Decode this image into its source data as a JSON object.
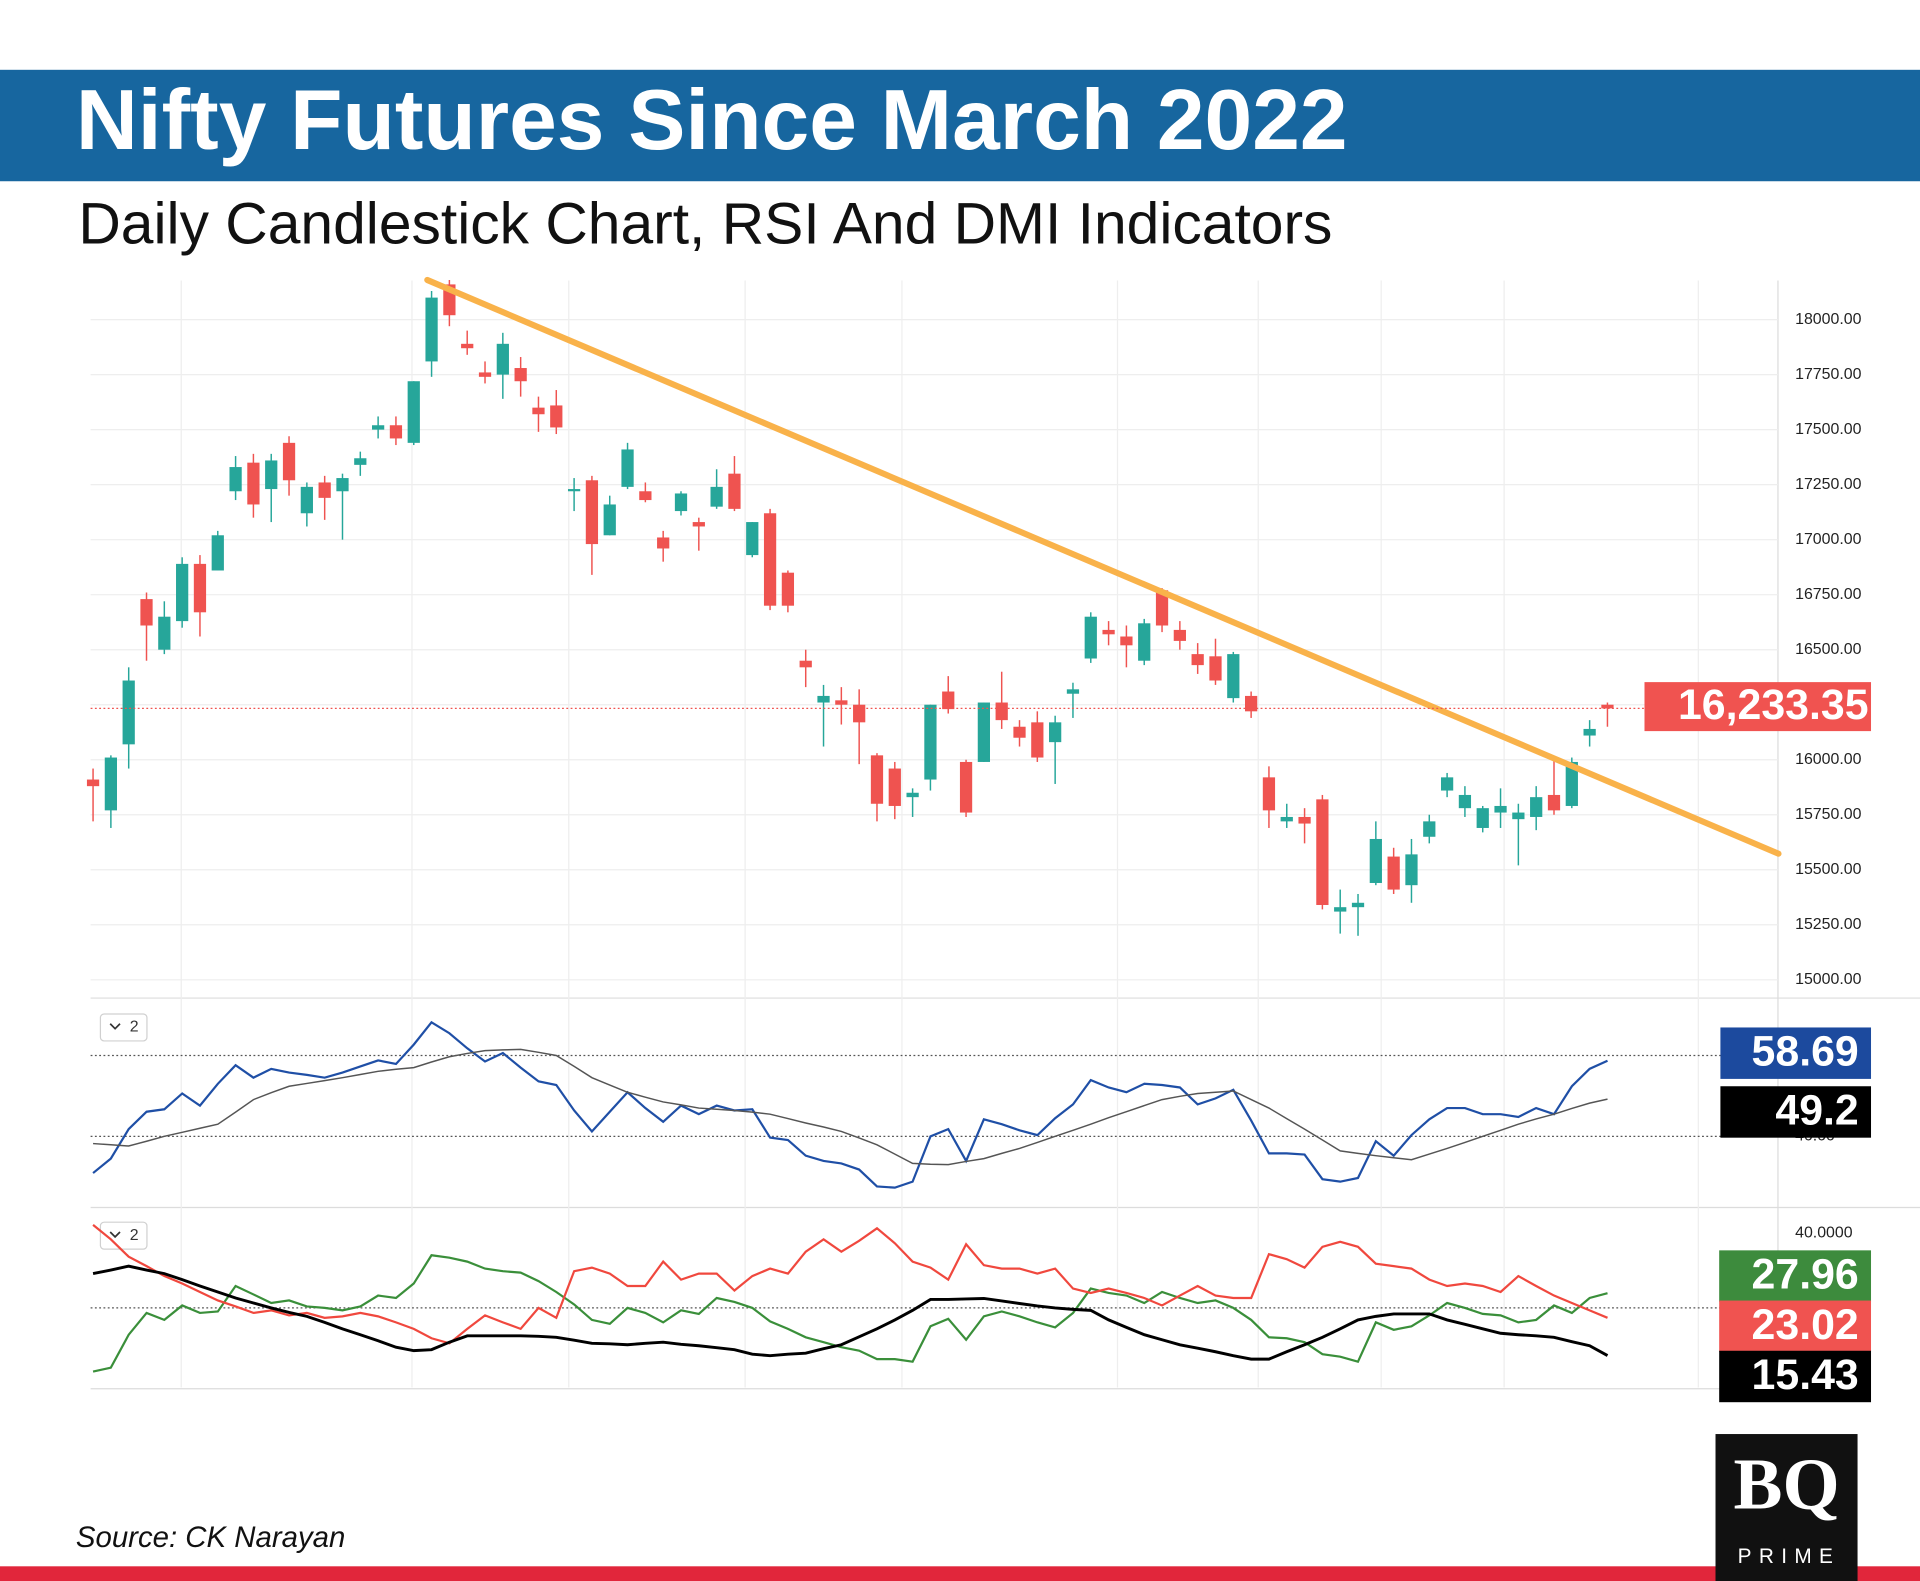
{
  "header": {
    "title": "Nifty Futures Since March 2022",
    "subtitle": "Daily Candlestick Chart, RSI And DMI Indicators"
  },
  "chart_data": [
    {
      "type": "candlestick",
      "up_color": "#26a69a",
      "down_color": "#ef5350",
      "open": [
        15910,
        15770,
        16070,
        16730,
        16500,
        16630,
        16890,
        16860,
        17220,
        17350,
        17230,
        17440,
        17120,
        17260,
        17220,
        17340,
        17500,
        17520,
        17440,
        17810,
        18160,
        17890,
        17760,
        17750,
        17780,
        17600,
        17610,
        17220,
        17270,
        17020,
        17240,
        17220,
        17010,
        17130,
        17080,
        17150,
        17300,
        16930,
        17120,
        16850,
        16450,
        16260,
        16270,
        16250,
        16020,
        15960,
        15830,
        15910,
        16310,
        15990,
        15990,
        16260,
        16150,
        16170,
        16080,
        16300,
        16460,
        16590,
        16560,
        16450,
        16770,
        16590,
        16480,
        16470,
        16280,
        16290,
        15920,
        15720,
        15740,
        15820,
        15310,
        15330,
        15440,
        15560,
        15430,
        15650,
        15860,
        15780,
        15690,
        15760,
        15730,
        15740,
        15840,
        15790,
        16110,
        16250
      ],
      "high": [
        15960,
        16020,
        16420,
        16760,
        16720,
        16920,
        16930,
        17040,
        17380,
        17390,
        17390,
        17470,
        17260,
        17290,
        17300,
        17400,
        17560,
        17560,
        17720,
        18130,
        18180,
        17950,
        17810,
        17940,
        17830,
        17650,
        17680,
        17280,
        17290,
        17200,
        17440,
        17260,
        17040,
        17220,
        17100,
        17320,
        17380,
        17080,
        17140,
        16860,
        16500,
        16340,
        16330,
        16320,
        16030,
        15990,
        15870,
        16250,
        16380,
        16000,
        16260,
        16400,
        16180,
        16220,
        16200,
        16350,
        16670,
        16630,
        16610,
        16640,
        16780,
        16630,
        16530,
        16550,
        16490,
        16310,
        15970,
        15800,
        15780,
        15840,
        15410,
        15390,
        15720,
        15600,
        15640,
        15750,
        15940,
        15880,
        15790,
        15870,
        15800,
        15880,
        16000,
        16010,
        16180,
        16260
      ],
      "low": [
        15720,
        15690,
        15960,
        16450,
        16480,
        16600,
        16560,
        16860,
        17180,
        17100,
        17080,
        17200,
        17060,
        17090,
        17000,
        17290,
        17460,
        17430,
        17430,
        17740,
        17970,
        17840,
        17710,
        17640,
        17650,
        17490,
        17480,
        17130,
        16840,
        17020,
        17230,
        17170,
        16900,
        17110,
        16950,
        17140,
        17130,
        16920,
        16680,
        16670,
        16330,
        16060,
        16160,
        15980,
        15720,
        15730,
        15740,
        15860,
        16210,
        15740,
        15990,
        16140,
        16060,
        15990,
        15890,
        16190,
        16440,
        16520,
        16420,
        16430,
        16580,
        16500,
        16390,
        16340,
        16260,
        16190,
        15690,
        15690,
        15620,
        15320,
        15210,
        15200,
        15430,
        15390,
        15350,
        15620,
        15830,
        15740,
        15670,
        15690,
        15520,
        15680,
        15750,
        15780,
        16060,
        16150
      ],
      "close": [
        15880,
        16010,
        16360,
        16610,
        16650,
        16890,
        16670,
        17020,
        17330,
        17160,
        17360,
        17270,
        17240,
        17190,
        17280,
        17370,
        17520,
        17460,
        17720,
        18100,
        18020,
        17870,
        17740,
        17890,
        17720,
        17570,
        17510,
        17230,
        16980,
        17160,
        17410,
        17180,
        16960,
        17210,
        17060,
        17240,
        17140,
        17080,
        16700,
        16700,
        16420,
        16290,
        16250,
        16170,
        15800,
        15790,
        15850,
        16250,
        16230,
        15760,
        16260,
        16180,
        16100,
        16010,
        16170,
        16320,
        16650,
        16570,
        16520,
        16620,
        16610,
        16540,
        16430,
        16360,
        16480,
        16220,
        15770,
        15740,
        15710,
        15340,
        15330,
        15350,
        15640,
        15410,
        15570,
        15720,
        15920,
        15840,
        15780,
        15790,
        15760,
        15830,
        15770,
        15990,
        16140,
        16233.35
      ],
      "ylim": [
        14917,
        18178
      ],
      "yticks": [
        {
          "value": 15000,
          "label": "15000.00"
        },
        {
          "value": 15250,
          "label": "15250.00"
        },
        {
          "value": 15500,
          "label": "15500.00"
        },
        {
          "value": 15750,
          "label": "15750.00"
        },
        {
          "value": 16000,
          "label": "16000.00"
        },
        {
          "value": 16250,
          "label": "16250.00"
        },
        {
          "value": 16500,
          "label": "16500.00"
        },
        {
          "value": 16750,
          "label": "16750.00"
        },
        {
          "value": 17000,
          "label": "17000.00"
        },
        {
          "value": 17250,
          "label": "17250.00"
        },
        {
          "value": 17500,
          "label": "17500.00"
        },
        {
          "value": 17750,
          "label": "17750.00"
        },
        {
          "value": 18000,
          "label": "18000.00"
        }
      ],
      "grid": true,
      "xgrid": [
        4.95,
        17.9,
        26.7,
        36.6,
        45.4,
        57.5,
        65.4,
        72.3,
        79.2,
        90.1
      ],
      "last_value_label": "16,233.35",
      "last_color": "#f05350",
      "trendline": {
        "color": "#f9b24a",
        "x": [
          18.76,
          94.6
        ],
        "y": [
          18180,
          15573
        ]
      }
    },
    {
      "type": "line",
      "badge": "2",
      "ylim": [
        22.7,
        73.3
      ],
      "hlines": [
        40,
        60
      ],
      "yticks": [
        {
          "value": 40,
          "label": "40.00"
        }
      ],
      "series": [
        {
          "color": "#1f4fa6",
          "box_color": "#1c4a9e",
          "values": [
            30.9,
            34.5,
            41.8,
            46.1,
            46.7,
            50.6,
            47.6,
            53.0,
            57.6,
            54.5,
            56.7,
            55.8,
            55.2,
            54.5,
            55.8,
            57.3,
            58.8,
            57.9,
            62.7,
            68.2,
            65.5,
            61.8,
            58.5,
            60.6,
            57.0,
            53.6,
            52.7,
            46.4,
            41.2,
            46.1,
            50.9,
            47.0,
            43.6,
            47.6,
            45.5,
            47.6,
            46.4,
            46.7,
            39.7,
            39.1,
            35.2,
            33.9,
            33.3,
            31.8,
            27.6,
            27.3,
            28.8,
            40.0,
            41.8,
            33.9,
            44.2,
            43.0,
            41.5,
            40.3,
            44.5,
            47.9,
            53.9,
            52.1,
            50.9,
            53.0,
            52.7,
            52.1,
            47.9,
            49.4,
            51.5,
            43.9,
            35.8,
            35.8,
            35.5,
            29.4,
            28.8,
            29.7,
            38.8,
            35.2,
            40.3,
            44.2,
            47.0,
            47.0,
            45.5,
            45.5,
            44.8,
            47.0,
            45.5,
            52.4,
            56.7,
            58.69
          ]
        },
        {
          "color": "#555555",
          "box_color": "#000000",
          "values": [
            38.2,
            37.9,
            37.6,
            38.8,
            40.0,
            41.0,
            42.0,
            43.0,
            46.0,
            49.1,
            50.8,
            52.4,
            53.1,
            53.8,
            54.5,
            55.3,
            56.1,
            56.6,
            57.0,
            58.4,
            59.7,
            60.5,
            61.2,
            61.4,
            61.5,
            60.8,
            60.0,
            57.3,
            54.5,
            52.7,
            50.9,
            49.7,
            48.5,
            47.8,
            47.0,
            46.7,
            46.4,
            46.0,
            45.5,
            44.4,
            43.3,
            42.3,
            41.2,
            39.6,
            37.9,
            35.6,
            33.3,
            33.1,
            33.0,
            33.8,
            34.5,
            35.8,
            37.0,
            38.5,
            40.0,
            41.5,
            43.0,
            44.6,
            46.1,
            47.6,
            49.1,
            49.9,
            50.6,
            50.9,
            51.2,
            49.1,
            47.0,
            44.4,
            41.8,
            39.1,
            36.4,
            35.8,
            35.2,
            34.7,
            34.2,
            35.6,
            37.0,
            38.5,
            40.0,
            41.5,
            43.0,
            44.3,
            45.5,
            46.9,
            48.2,
            49.2
          ]
        }
      ]
    },
    {
      "type": "line",
      "badge": "2",
      "ylim": [
        9.0,
        44.7
      ],
      "hlines": [
        25
      ],
      "yticks": [
        {
          "value": 40,
          "label": "40.0000"
        }
      ],
      "series": [
        {
          "color": "#3a8f3a",
          "box_color": "#3d8b3d",
          "values": [
            12.2,
            13.0,
            19.6,
            24.0,
            22.6,
            25.5,
            24.0,
            24.3,
            29.4,
            27.7,
            26.0,
            26.5,
            25.3,
            25.0,
            24.5,
            25.3,
            27.5,
            27.0,
            29.9,
            35.6,
            35.1,
            34.3,
            32.9,
            32.4,
            32.1,
            30.4,
            28.2,
            25.7,
            22.6,
            21.8,
            25.0,
            24.0,
            22.1,
            24.5,
            23.8,
            27.0,
            26.2,
            25.0,
            22.3,
            20.8,
            19.1,
            18.1,
            17.1,
            16.4,
            14.7,
            14.7,
            14.2,
            21.3,
            22.8,
            18.6,
            23.3,
            24.3,
            23.3,
            22.1,
            21.1,
            24.0,
            28.9,
            28.0,
            27.5,
            26.0,
            28.2,
            27.0,
            26.0,
            26.5,
            25.0,
            22.6,
            19.1,
            18.9,
            18.1,
            15.7,
            15.2,
            14.2,
            22.1,
            20.6,
            21.3,
            23.5,
            26.0,
            25.0,
            23.8,
            23.5,
            22.1,
            22.6,
            25.5,
            24.0,
            27.0,
            27.96
          ]
        },
        {
          "color": "#f0483e",
          "box_color": "#f05350",
          "values": [
            41.7,
            38.8,
            35.3,
            33.4,
            31.4,
            29.9,
            28.2,
            26.5,
            25.3,
            24.0,
            24.5,
            23.5,
            24.0,
            23.0,
            23.3,
            24.0,
            23.3,
            22.1,
            20.8,
            18.9,
            17.9,
            20.8,
            23.5,
            22.1,
            20.8,
            25.0,
            23.0,
            32.4,
            33.1,
            31.9,
            29.4,
            29.4,
            34.3,
            30.7,
            31.9,
            31.9,
            28.5,
            31.4,
            32.9,
            31.9,
            36.3,
            38.8,
            36.3,
            38.5,
            41.0,
            38.0,
            34.3,
            33.1,
            30.7,
            37.8,
            33.6,
            32.9,
            32.9,
            31.9,
            32.9,
            28.9,
            28.0,
            28.9,
            28.0,
            27.0,
            25.5,
            27.5,
            29.4,
            27.5,
            27.0,
            27.0,
            35.8,
            34.8,
            33.1,
            37.3,
            38.3,
            37.3,
            33.9,
            33.4,
            32.9,
            30.7,
            29.4,
            29.9,
            29.4,
            28.2,
            31.4,
            29.4,
            27.5,
            26.0,
            24.5,
            23.02
          ]
        },
        {
          "color": "#000000",
          "box_color": "#000000",
          "values": [
            31.9,
            32.6,
            33.4,
            32.6,
            31.9,
            30.7,
            29.4,
            28.2,
            27.0,
            26.0,
            25.0,
            24.1,
            23.3,
            22.1,
            20.8,
            19.6,
            18.4,
            17.1,
            16.4,
            16.6,
            18.1,
            19.4,
            19.4,
            19.4,
            19.4,
            19.3,
            19.1,
            18.5,
            17.9,
            17.8,
            17.6,
            17.9,
            18.1,
            17.7,
            17.4,
            17.0,
            16.6,
            15.7,
            15.4,
            15.7,
            15.9,
            16.8,
            17.6,
            19.2,
            20.8,
            22.6,
            24.5,
            26.7,
            26.7,
            26.8,
            26.9,
            26.4,
            25.9,
            25.4,
            25.0,
            24.7,
            24.5,
            22.6,
            21.1,
            19.6,
            18.6,
            17.6,
            16.9,
            16.2,
            15.4,
            14.7,
            14.7,
            16.2,
            17.6,
            19.1,
            20.8,
            22.6,
            23.3,
            23.8,
            23.8,
            23.8,
            22.6,
            21.7,
            20.8,
            19.9,
            19.6,
            19.4,
            19.1,
            18.2,
            17.4,
            15.43
          ]
        }
      ]
    }
  ],
  "source": "Source: CK Narayan",
  "logo": {
    "mark": "BQ",
    "name": "PRIME"
  }
}
